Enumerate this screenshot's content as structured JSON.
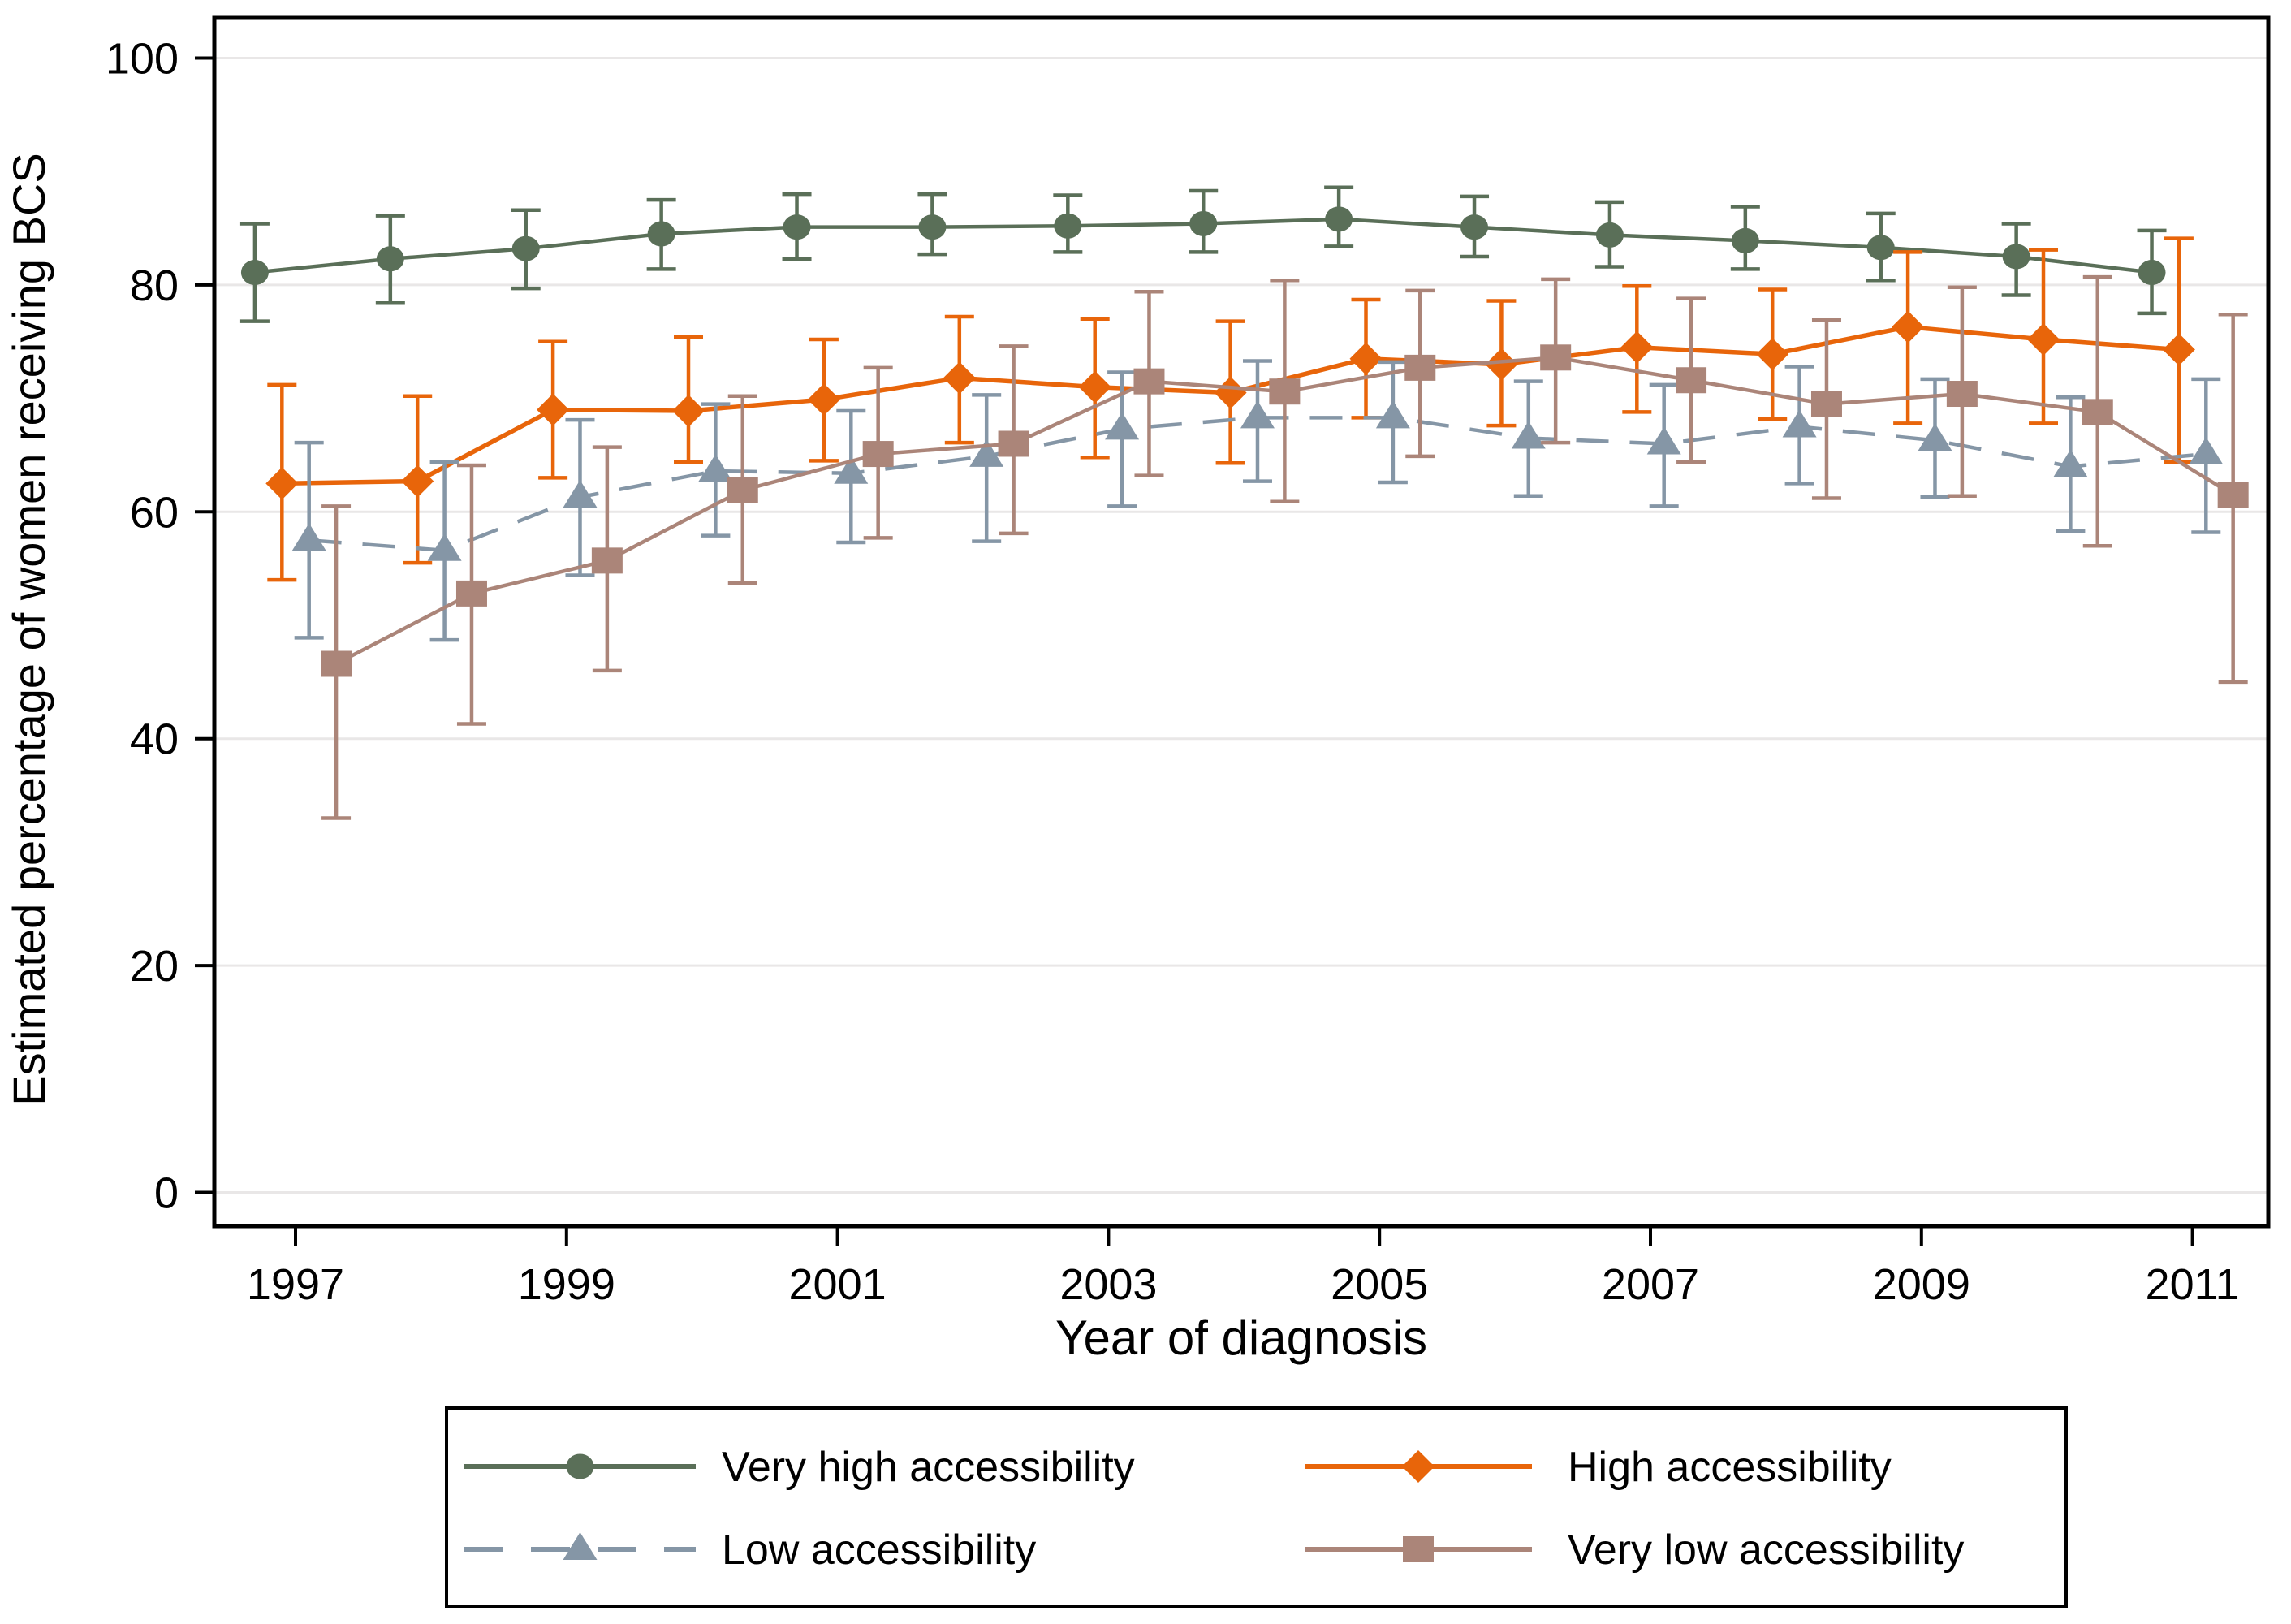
{
  "figure": {
    "title": "",
    "x_axis_title": "Year of diagnosis",
    "y_axis_title": "Estimated percentage of women receiving BCS"
  },
  "colors": {
    "very_high": "#5a6f58",
    "high": "#e8650a",
    "low": "#8596a6",
    "very_low": "#ab8579",
    "gridline": "#e9e7e7",
    "axis": "#000000",
    "background": "#ffffff"
  },
  "chart_data": {
    "type": "line",
    "title": "",
    "xlabel": "Year of diagnosis",
    "ylabel": "Estimated percentage of women receiving BCS",
    "x": [
      1997,
      1998,
      1999,
      2000,
      2001,
      2002,
      2003,
      2004,
      2005,
      2006,
      2007,
      2008,
      2009,
      2010,
      2011
    ],
    "x_tick_labels": [
      "1997",
      "1999",
      "2001",
      "2003",
      "2005",
      "2007",
      "2009",
      "2011"
    ],
    "x_ticks": [
      1997,
      1999,
      2001,
      2003,
      2005,
      2007,
      2009,
      2011
    ],
    "y_ticks": [
      0,
      20,
      40,
      60,
      80,
      100
    ],
    "ylim": [
      0,
      100
    ],
    "xlim": [
      1996.4,
      2011.6
    ],
    "grid": "horizontal",
    "legend_position": "bottom",
    "error_bars": "95% CI",
    "series": [
      {
        "name": "Very high accessibility",
        "marker": "circle",
        "line_style": "solid",
        "color": "#5a6f58",
        "x_offset_years": -0.3,
        "values": [
          81.1,
          82.3,
          83.2,
          84.5,
          85.1,
          85.1,
          85.2,
          85.4,
          85.8,
          85.1,
          84.4,
          83.9,
          83.3,
          82.5,
          81.1
        ],
        "ci_low": [
          76.8,
          78.4,
          79.7,
          81.4,
          82.3,
          82.7,
          82.9,
          82.9,
          83.4,
          82.5,
          81.6,
          81.4,
          80.4,
          79.1,
          77.5
        ],
        "ci_high": [
          85.4,
          86.1,
          86.6,
          87.5,
          88.0,
          88.0,
          87.9,
          88.3,
          88.6,
          87.8,
          87.3,
          86.9,
          86.3,
          85.4,
          84.8
        ]
      },
      {
        "name": "High accessibility",
        "marker": "diamond",
        "line_style": "solid",
        "color": "#e8650a",
        "x_offset_years": -0.1,
        "values": [
          62.5,
          62.7,
          69.0,
          68.9,
          69.9,
          71.8,
          71.0,
          70.5,
          73.5,
          73.0,
          74.5,
          73.9,
          76.3,
          75.2,
          74.3
        ],
        "ci_low": [
          54.0,
          55.5,
          63.0,
          64.4,
          64.5,
          66.1,
          64.8,
          64.3,
          68.3,
          67.6,
          68.8,
          68.2,
          67.8,
          67.8,
          64.4
        ],
        "ci_high": [
          71.2,
          70.2,
          75.0,
          75.4,
          75.2,
          77.2,
          77.0,
          76.8,
          78.7,
          78.6,
          79.9,
          79.6,
          82.9,
          83.1,
          84.1
        ]
      },
      {
        "name": "Low accessibility",
        "marker": "triangle",
        "line_style": "dashed",
        "color": "#8596a6",
        "x_offset_years": 0.1,
        "values": [
          57.5,
          56.6,
          61.3,
          63.6,
          63.4,
          64.9,
          67.3,
          68.3,
          68.3,
          66.5,
          66.0,
          67.5,
          66.3,
          64.0,
          65.1
        ],
        "ci_low": [
          48.9,
          48.7,
          54.4,
          57.9,
          57.3,
          57.4,
          60.5,
          62.7,
          62.6,
          61.4,
          60.5,
          62.5,
          61.3,
          58.3,
          58.2
        ],
        "ci_high": [
          66.1,
          64.4,
          68.1,
          69.5,
          68.9,
          70.3,
          72.3,
          73.3,
          73.2,
          71.5,
          71.2,
          72.8,
          71.7,
          70.1,
          71.7
        ]
      },
      {
        "name": "Very low accessibility",
        "marker": "square",
        "line_style": "solid",
        "color": "#ab8579",
        "x_offset_years": 0.3,
        "values": [
          46.6,
          52.8,
          55.7,
          61.9,
          65.1,
          66.0,
          71.5,
          70.6,
          72.7,
          73.6,
          71.6,
          69.5,
          70.4,
          68.8,
          61.5
        ],
        "ci_low": [
          33.0,
          41.3,
          46.0,
          53.7,
          57.7,
          58.1,
          63.2,
          60.9,
          64.9,
          66.1,
          64.4,
          61.2,
          61.4,
          57.0,
          45.0
        ],
        "ci_high": [
          60.5,
          64.1,
          65.7,
          70.2,
          72.7,
          74.6,
          79.4,
          80.4,
          79.5,
          80.5,
          78.8,
          76.9,
          79.8,
          80.7,
          77.4
        ]
      }
    ]
  },
  "legend": {
    "items": [
      {
        "label": "Very high accessibility",
        "marker": "circle",
        "color": "#5a6f58",
        "line_style": "solid"
      },
      {
        "label": "High accessibility",
        "marker": "diamond",
        "color": "#e8650a",
        "line_style": "solid"
      },
      {
        "label": "Low accessibility",
        "marker": "triangle",
        "color": "#8596a6",
        "line_style": "dashed"
      },
      {
        "label": "Very low accessibility",
        "marker": "square",
        "color": "#ab8579",
        "line_style": "solid"
      }
    ]
  }
}
